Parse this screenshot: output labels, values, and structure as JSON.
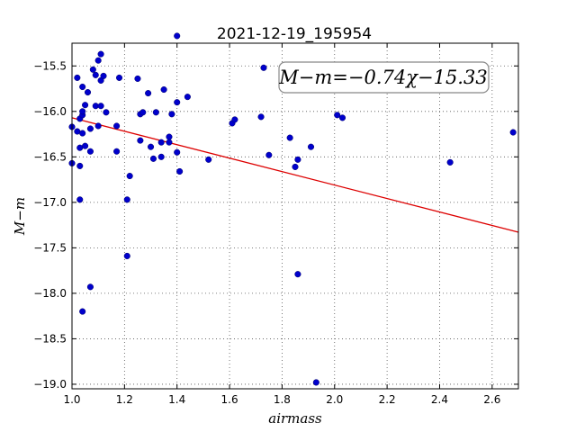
{
  "chart_data": {
    "type": "scatter",
    "title": "2021-12-19_195954",
    "xlabel": "airmass",
    "ylabel": "M−m",
    "xlim": [
      1.0,
      2.7
    ],
    "ylim": [
      -19.05,
      -15.25
    ],
    "y_inverted": false,
    "grid": true,
    "grid_style": "dotted",
    "xticks": [
      1.0,
      1.2,
      1.4,
      1.6,
      1.8,
      2.0,
      2.2,
      2.4,
      2.6
    ],
    "xtick_labels": [
      "1.0",
      "1.2",
      "1.4",
      "1.6",
      "1.8",
      "2.0",
      "2.2",
      "2.4",
      "2.6"
    ],
    "yticks": [
      -15.5,
      -16.0,
      -16.5,
      -17.0,
      -17.5,
      -18.0,
      -18.5,
      -19.0
    ],
    "ytick_labels": [
      "−15.5",
      "−16.0",
      "−16.5",
      "−17.0",
      "−17.5",
      "−18.0",
      "−18.5",
      "−19.0"
    ],
    "annotation": "M−m=−0.74χ−15.33",
    "colors": {
      "points": "#0000cc",
      "fit_line": "#dd0000"
    },
    "fit": {
      "slope": -0.74,
      "intercept": -15.33
    },
    "points": [
      {
        "x": 1.0,
        "y": -16.17
      },
      {
        "x": 1.0,
        "y": -16.57
      },
      {
        "x": 1.02,
        "y": -15.63
      },
      {
        "x": 1.02,
        "y": -16.22
      },
      {
        "x": 1.03,
        "y": -16.4
      },
      {
        "x": 1.03,
        "y": -16.6
      },
      {
        "x": 1.03,
        "y": -16.08
      },
      {
        "x": 1.03,
        "y": -16.97
      },
      {
        "x": 1.04,
        "y": -15.73
      },
      {
        "x": 1.04,
        "y": -16.04
      },
      {
        "x": 1.04,
        "y": -16.0
      },
      {
        "x": 1.04,
        "y": -16.24
      },
      {
        "x": 1.04,
        "y": -18.2
      },
      {
        "x": 1.05,
        "y": -15.93
      },
      {
        "x": 1.05,
        "y": -16.38
      },
      {
        "x": 1.06,
        "y": -15.79
      },
      {
        "x": 1.07,
        "y": -16.44
      },
      {
        "x": 1.07,
        "y": -16.19
      },
      {
        "x": 1.07,
        "y": -17.93
      },
      {
        "x": 1.08,
        "y": -15.54
      },
      {
        "x": 1.09,
        "y": -15.6
      },
      {
        "x": 1.09,
        "y": -15.94
      },
      {
        "x": 1.1,
        "y": -16.16
      },
      {
        "x": 1.1,
        "y": -15.44
      },
      {
        "x": 1.11,
        "y": -15.37
      },
      {
        "x": 1.11,
        "y": -15.66
      },
      {
        "x": 1.11,
        "y": -15.94
      },
      {
        "x": 1.12,
        "y": -15.61
      },
      {
        "x": 1.13,
        "y": -16.01
      },
      {
        "x": 1.17,
        "y": -16.16
      },
      {
        "x": 1.17,
        "y": -16.44
      },
      {
        "x": 1.18,
        "y": -15.63
      },
      {
        "x": 1.21,
        "y": -16.97
      },
      {
        "x": 1.21,
        "y": -17.59
      },
      {
        "x": 1.22,
        "y": -16.71
      },
      {
        "x": 1.25,
        "y": -15.64
      },
      {
        "x": 1.26,
        "y": -16.03
      },
      {
        "x": 1.26,
        "y": -16.32
      },
      {
        "x": 1.27,
        "y": -16.01
      },
      {
        "x": 1.29,
        "y": -15.8
      },
      {
        "x": 1.3,
        "y": -16.39
      },
      {
        "x": 1.31,
        "y": -16.52
      },
      {
        "x": 1.32,
        "y": -16.01
      },
      {
        "x": 1.34,
        "y": -16.34
      },
      {
        "x": 1.34,
        "y": -16.5
      },
      {
        "x": 1.35,
        "y": -15.76
      },
      {
        "x": 1.37,
        "y": -16.28
      },
      {
        "x": 1.37,
        "y": -16.34
      },
      {
        "x": 1.38,
        "y": -16.03
      },
      {
        "x": 1.4,
        "y": -15.17
      },
      {
        "x": 1.4,
        "y": -15.9
      },
      {
        "x": 1.4,
        "y": -16.45
      },
      {
        "x": 1.41,
        "y": -16.66
      },
      {
        "x": 1.44,
        "y": -15.84
      },
      {
        "x": 1.52,
        "y": -16.53
      },
      {
        "x": 1.61,
        "y": -16.13
      },
      {
        "x": 1.62,
        "y": -16.09
      },
      {
        "x": 1.72,
        "y": -16.06
      },
      {
        "x": 1.73,
        "y": -15.52
      },
      {
        "x": 1.75,
        "y": -16.48
      },
      {
        "x": 1.83,
        "y": -16.29
      },
      {
        "x": 1.85,
        "y": -16.61
      },
      {
        "x": 1.86,
        "y": -16.53
      },
      {
        "x": 1.86,
        "y": -17.79
      },
      {
        "x": 1.91,
        "y": -16.39
      },
      {
        "x": 1.93,
        "y": -18.98
      },
      {
        "x": 2.01,
        "y": -16.04
      },
      {
        "x": 2.03,
        "y": -16.07
      },
      {
        "x": 2.44,
        "y": -16.56
      },
      {
        "x": 2.68,
        "y": -16.23
      }
    ]
  }
}
